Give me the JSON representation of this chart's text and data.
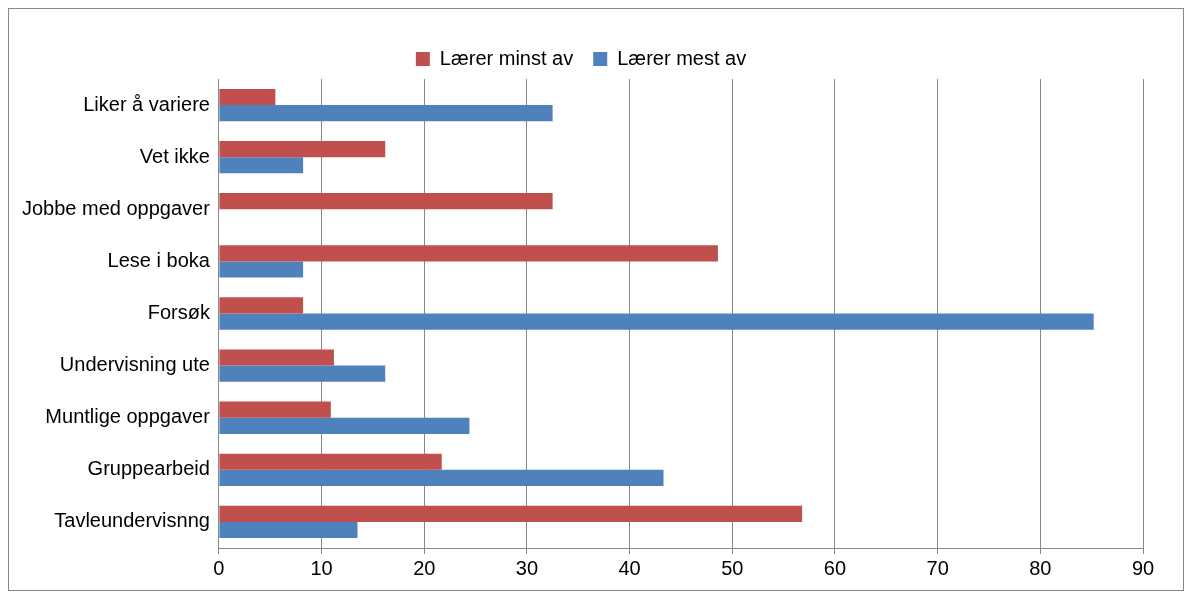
{
  "chart_data": {
    "type": "bar",
    "orientation": "horizontal",
    "categories": [
      "Liker å variere",
      "Vet ikke",
      "Jobbe med oppgaver",
      "Lese i boka",
      "Forsøk",
      "Undervisning ute",
      "Muntlige oppgaver",
      "Gruppearbeid",
      "Tavleundervisnng"
    ],
    "series": [
      {
        "name": "Lærer minst av",
        "color": "#c0504d",
        "values": [
          5.5,
          16.2,
          32.5,
          48.6,
          8.2,
          11.2,
          10.9,
          21.7,
          56.8
        ]
      },
      {
        "name": "Lærer mest av",
        "color": "#4f81bd",
        "values": [
          32.5,
          8.2,
          0,
          8.2,
          85.2,
          16.2,
          24.4,
          43.3,
          13.5
        ]
      }
    ],
    "xlim": [
      0,
      90
    ],
    "xticks": [
      0,
      10,
      20,
      30,
      40,
      50,
      60,
      70,
      80,
      90
    ],
    "grid": "x",
    "legend": "top"
  }
}
